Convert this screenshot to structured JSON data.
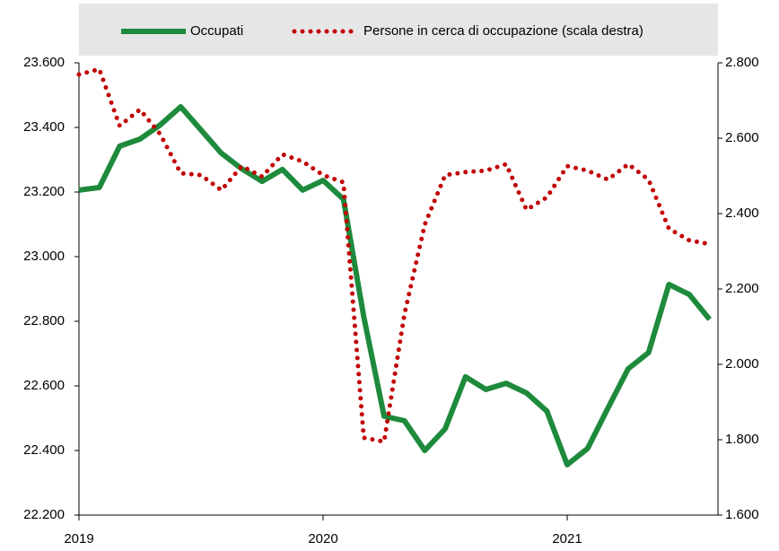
{
  "chart_data": {
    "type": "line",
    "legend": "top",
    "categories": [
      "2019",
      null,
      null,
      null,
      null,
      null,
      null,
      null,
      null,
      null,
      null,
      null,
      "2020",
      null,
      null,
      null,
      null,
      null,
      null,
      null,
      null,
      null,
      null,
      null,
      "2021",
      null,
      null,
      null,
      null,
      null,
      null,
      null
    ],
    "series": [
      {
        "name": "Occupati",
        "color": "#1e8a3c",
        "linestyle": "solid",
        "axis": "y",
        "values": [
          23206,
          23214,
          23342,
          23364,
          23408,
          23464,
          23392,
          23320,
          23272,
          23233,
          23270,
          23206,
          23236,
          23178,
          22814,
          22506,
          22492,
          22400,
          22467,
          22628,
          22589,
          22608,
          22578,
          22522,
          22356,
          22406,
          22531,
          22653,
          22703,
          22914,
          22883,
          22806
        ]
      },
      {
        "name": "Persone in cerca di occupazione (scala destra)",
        "color": "#c00000",
        "linestyle": "dotted",
        "axis": "y2",
        "values": [
          2769,
          2783,
          2633,
          2676,
          2610,
          2507,
          2502,
          2462,
          2526,
          2498,
          2557,
          2538,
          2502,
          2483,
          1805,
          1795,
          2133,
          2371,
          2502,
          2510,
          2514,
          2531,
          2410,
          2443,
          2526,
          2514,
          2490,
          2531,
          2490,
          2360,
          2329,
          2319
        ]
      }
    ],
    "ylim": [
      22200,
      23600
    ],
    "yticks": [
      {
        "value": 22200,
        "label": "22.200"
      },
      {
        "value": 22400,
        "label": "22.400"
      },
      {
        "value": 22600,
        "label": "22.600"
      },
      {
        "value": 22800,
        "label": "22.800"
      },
      {
        "value": 23000,
        "label": "23.000"
      },
      {
        "value": 23200,
        "label": "23.200"
      },
      {
        "value": 23400,
        "label": "23.400"
      },
      {
        "value": 23600,
        "label": "23.600"
      }
    ],
    "y2lim": [
      1600,
      2800
    ],
    "y2ticks": [
      {
        "value": 1600,
        "label": "1.600"
      },
      {
        "value": 1800,
        "label": "1.800"
      },
      {
        "value": 2000,
        "label": "2.000"
      },
      {
        "value": 2200,
        "label": "2.200"
      },
      {
        "value": 2400,
        "label": "2.400"
      },
      {
        "value": 2600,
        "label": "2.600"
      },
      {
        "value": 2800,
        "label": "2.800"
      }
    ]
  }
}
